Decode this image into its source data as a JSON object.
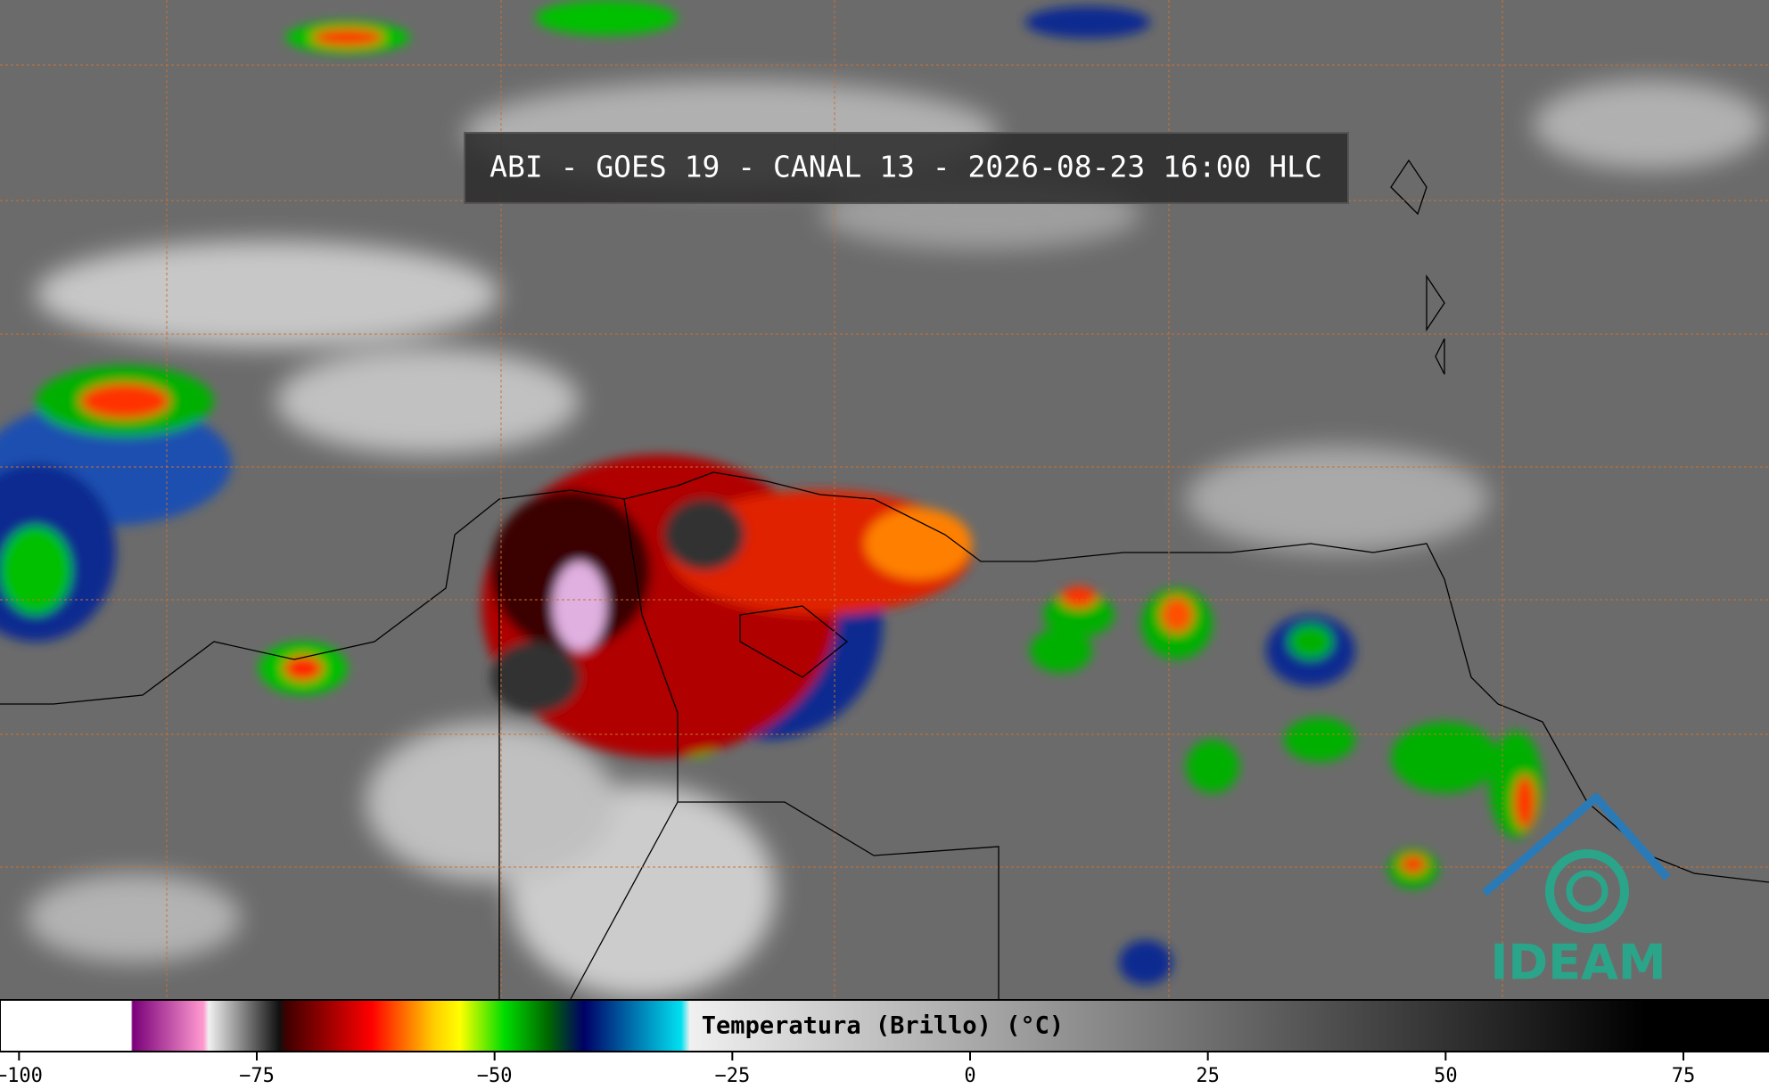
{
  "header": {
    "title": "ABI - GOES 19 - CANAL 13 - 2026-08-23 16:00 HLC"
  },
  "logo": {
    "text": "IDEAM"
  },
  "colorbar": {
    "label": "Temperatura (Brillo) (°C)",
    "xlim": [
      -102,
      84
    ],
    "xticks": [
      {
        "value": -100,
        "label": "−100"
      },
      {
        "value": -75,
        "label": "−75"
      },
      {
        "value": -50,
        "label": "−50"
      },
      {
        "value": -25,
        "label": "−25"
      },
      0,
      25,
      50,
      75
    ]
  }
}
